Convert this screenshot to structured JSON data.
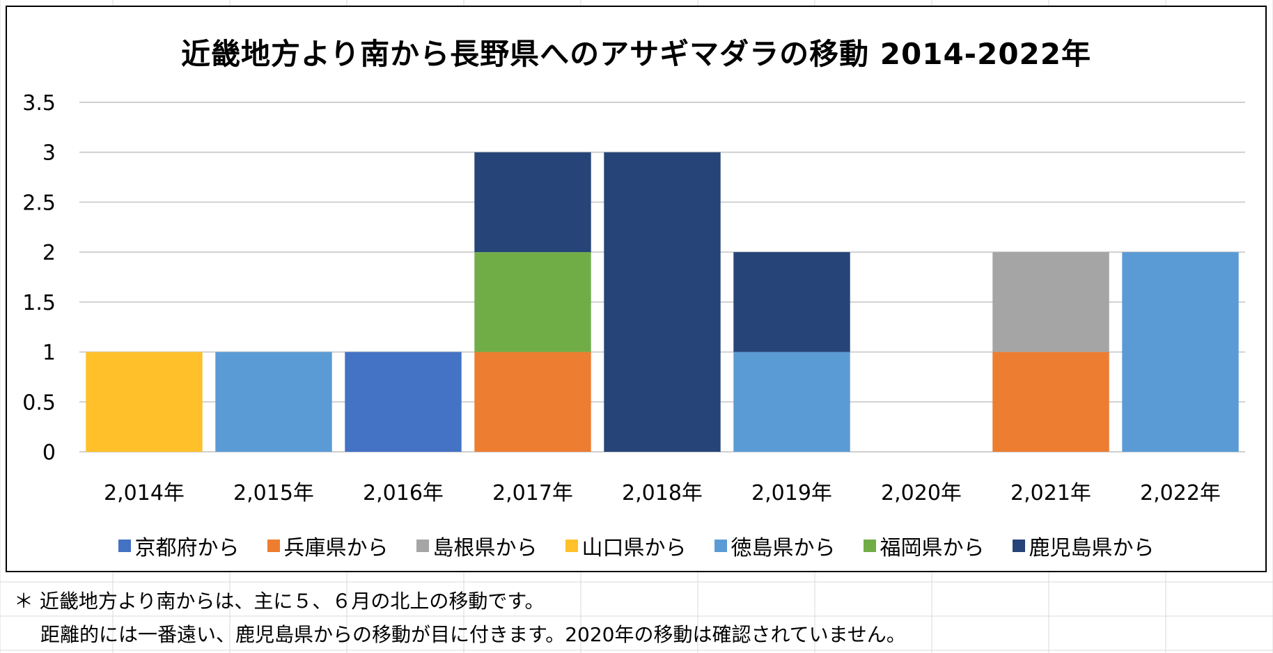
{
  "colors": {
    "京都府から": "#4472C4",
    "兵庫県から": "#ED7D31",
    "島根県から": "#A5A5A5",
    "山口県から": "#FFC02A",
    "徳島県から": "#5B9BD5",
    "福岡県から": "#70AD47",
    "鹿児島県から": "#264478"
  },
  "chart_data": {
    "type": "bar",
    "stacked": true,
    "title": "近畿地方より南から長野県へのアサギマダラの移動 2014-2022年",
    "xlabel": "",
    "ylabel": "",
    "ylim": [
      0,
      3.5
    ],
    "yticks": [
      "0",
      "0.5",
      "1",
      "1.5",
      "2",
      "2.5",
      "3",
      "3.5"
    ],
    "grid": true,
    "legend_position": "bottom",
    "categories": [
      "2,014年",
      "2,015年",
      "2,016年",
      "2,017年",
      "2,018年",
      "2,019年",
      "2,020年",
      "2,021年",
      "2,022年"
    ],
    "series": [
      {
        "name": "京都府から",
        "values": [
          0,
          0,
          1,
          0,
          0,
          0,
          0,
          0,
          0
        ]
      },
      {
        "name": "兵庫県から",
        "values": [
          0,
          0,
          0,
          1,
          0,
          0,
          0,
          1,
          0
        ]
      },
      {
        "name": "島根県から",
        "values": [
          0,
          0,
          0,
          0,
          0,
          0,
          0,
          1,
          0
        ]
      },
      {
        "name": "山口県から",
        "values": [
          1,
          0,
          0,
          0,
          0,
          0,
          0,
          0,
          0
        ]
      },
      {
        "name": "徳島県から",
        "values": [
          0,
          1,
          0,
          0,
          0,
          1,
          0,
          0,
          2
        ]
      },
      {
        "name": "福岡県から",
        "values": [
          0,
          0,
          0,
          1,
          0,
          0,
          0,
          0,
          0
        ]
      },
      {
        "name": "鹿児島県から",
        "values": [
          0,
          0,
          0,
          1,
          3,
          1,
          0,
          0,
          0
        ]
      }
    ]
  },
  "notes": {
    "line1": "＊ 近畿地方より南からは、主に５、６月の北上の移動です。",
    "line2": "距離的には一番遠い、鹿児島県からの移動が目に付きます。2020年の移動は確認されていません。"
  }
}
